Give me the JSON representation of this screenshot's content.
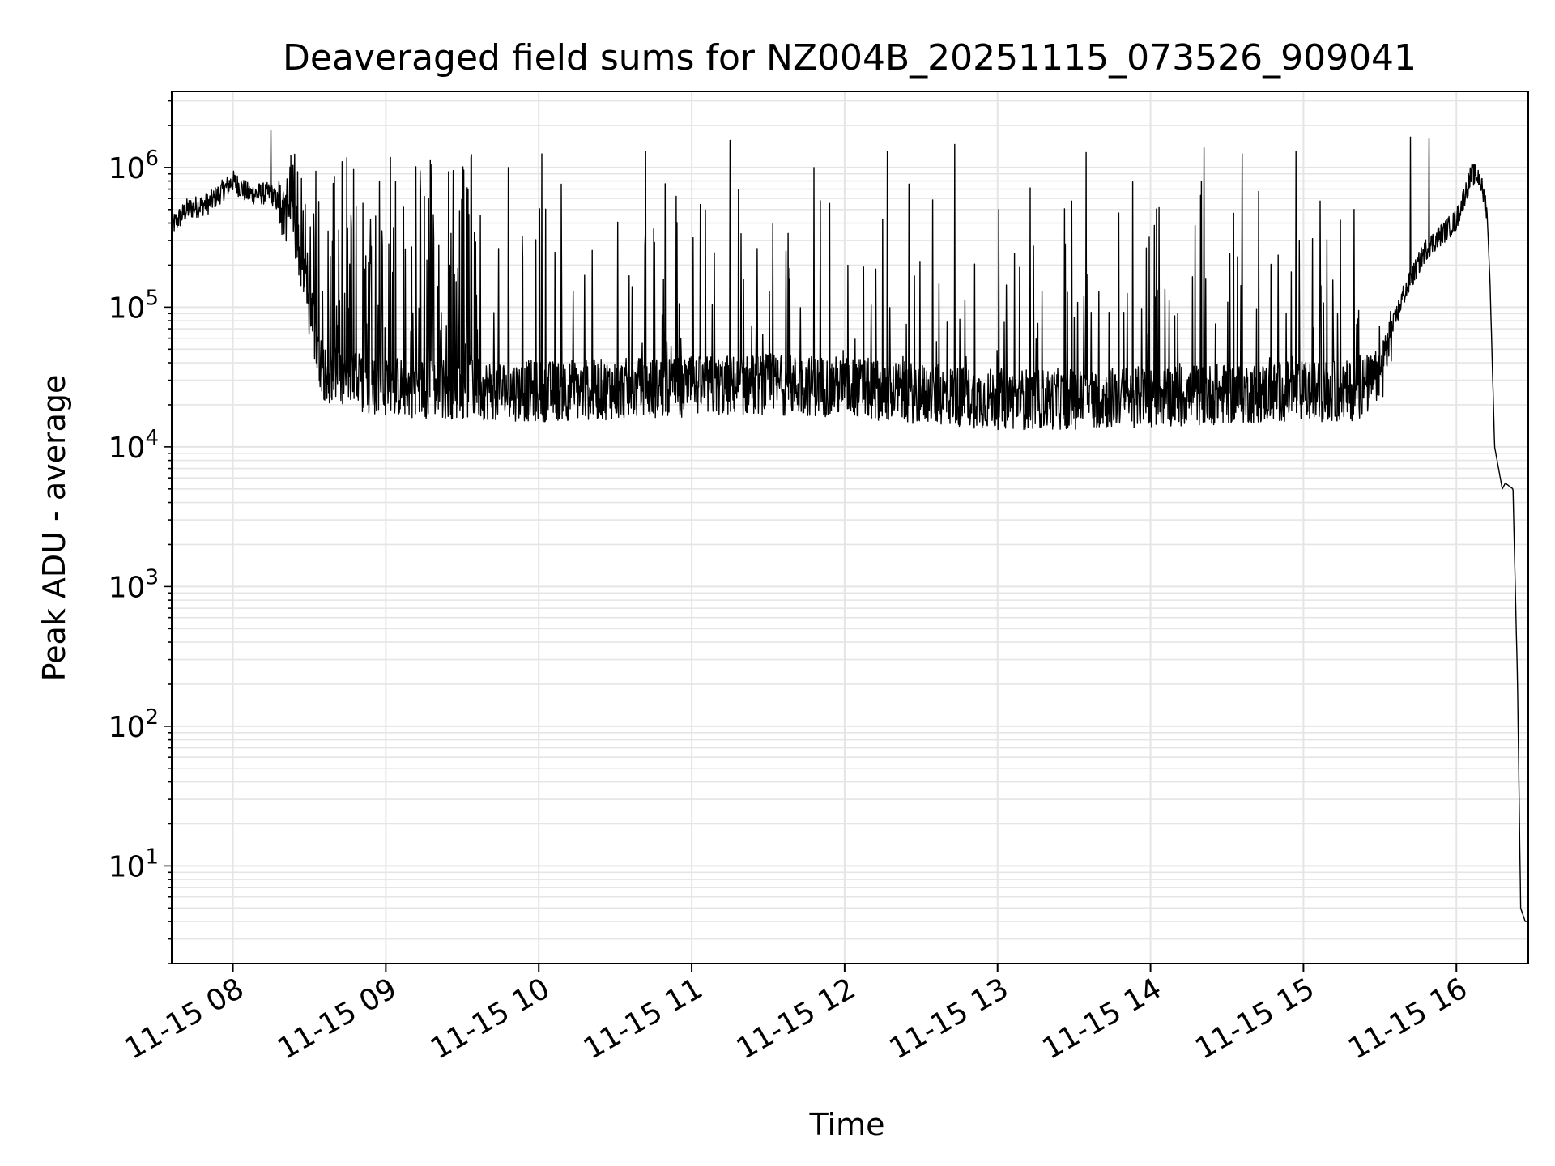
{
  "chart_data": {
    "type": "line",
    "title": "Deaveraged field sums for NZ004B_20251115_073526_909041",
    "xlabel": "Time",
    "ylabel": "Peak ADU - average",
    "yscale": "log",
    "ylim": [
      2,
      3500000
    ],
    "xlim_hours": [
      7.6,
      16.47
    ],
    "grid": true,
    "line_color": "#000000",
    "grid_color": "#e5e5e5",
    "x_ticks": [
      {
        "label": "11-15 08",
        "hour": 8
      },
      {
        "label": "11-15 09",
        "hour": 9
      },
      {
        "label": "11-15 10",
        "hour": 10
      },
      {
        "label": "11-15 11",
        "hour": 11
      },
      {
        "label": "11-15 12",
        "hour": 12
      },
      {
        "label": "11-15 13",
        "hour": 13
      },
      {
        "label": "11-15 14",
        "hour": 14
      },
      {
        "label": "11-15 15",
        "hour": 15
      },
      {
        "label": "11-15 16",
        "hour": 16
      }
    ],
    "y_ticks": [
      {
        "base": "10",
        "exp": "1",
        "value": 10
      },
      {
        "base": "10",
        "exp": "2",
        "value": 100
      },
      {
        "base": "10",
        "exp": "3",
        "value": 1000
      },
      {
        "base": "10",
        "exp": "4",
        "value": 10000
      },
      {
        "base": "10",
        "exp": "5",
        "value": 100000
      },
      {
        "base": "10",
        "exp": "6",
        "value": 1000000
      }
    ],
    "series": [
      {
        "name": "Peak ADU - average",
        "baseline_hours": [
          7.6,
          7.7,
          7.85,
          8.0,
          8.1,
          8.25,
          8.4,
          8.5,
          8.55,
          8.6,
          8.7,
          9.0,
          9.5,
          10.0,
          10.5,
          11.0,
          11.5,
          12.0,
          12.5,
          13.0,
          13.5,
          14.0,
          14.5,
          15.0,
          15.3,
          15.5,
          15.55,
          15.65,
          15.8,
          16.0,
          16.1,
          16.15,
          16.2,
          16.22,
          16.25,
          16.3,
          16.32,
          16.37,
          16.4,
          16.42,
          16.45,
          16.47
        ],
        "baseline_values": [
          380000,
          500000,
          560000,
          800000,
          650000,
          650000,
          400000,
          100000,
          50000,
          35000,
          30000,
          27000,
          26000,
          25000,
          26000,
          27000,
          28000,
          27000,
          24000,
          22000,
          22000,
          23000,
          24000,
          25000,
          25000,
          30000,
          55000,
          120000,
          260000,
          420000,
          900000,
          850000,
          500000,
          150000,
          10000,
          5000,
          5500,
          5000,
          200,
          5,
          4,
          4
        ],
        "spikes": [
          {
            "hour": 8.25,
            "value": 1850000
          },
          {
            "hour": 9.03,
            "value": 1180000
          },
          {
            "hour": 9.3,
            "value": 1050000
          },
          {
            "hour": 9.8,
            "value": 1000000
          },
          {
            "hour": 10.02,
            "value": 1250000
          },
          {
            "hour": 10.7,
            "value": 1300000
          },
          {
            "hour": 11.25,
            "value": 1560000
          },
          {
            "hour": 11.8,
            "value": 1000000
          },
          {
            "hour": 12.28,
            "value": 1300000
          },
          {
            "hour": 12.72,
            "value": 1460000
          },
          {
            "hour": 13.58,
            "value": 1280000
          },
          {
            "hour": 14.35,
            "value": 1380000
          },
          {
            "hour": 14.6,
            "value": 1250000
          },
          {
            "hour": 14.95,
            "value": 1300000
          },
          {
            "hour": 15.7,
            "value": 1650000
          },
          {
            "hour": 15.82,
            "value": 1600000
          }
        ]
      }
    ]
  }
}
